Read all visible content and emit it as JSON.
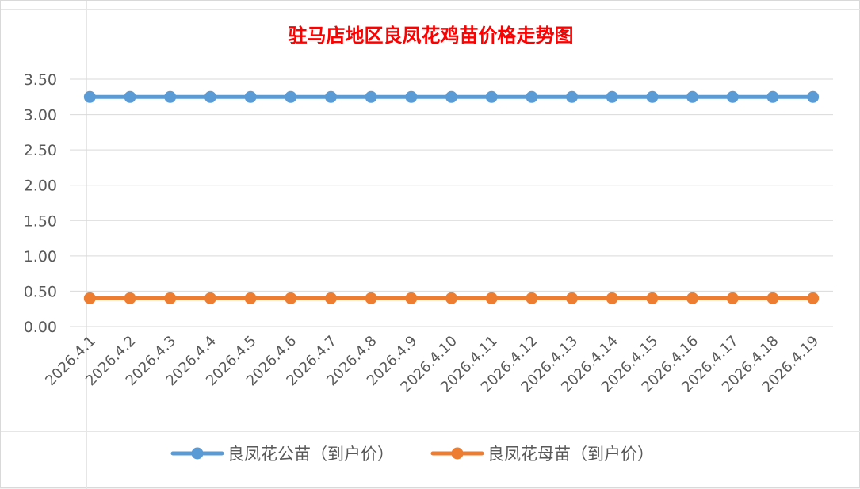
{
  "chart_data": {
    "type": "line",
    "title": "驻马店地区良凤花鸡苗价格走势图",
    "xlabel": "",
    "ylabel": "",
    "categories": [
      "2026.4.1",
      "2026.4.2",
      "2026.4.3",
      "2026.4.4",
      "2026.4.5",
      "2026.4.6",
      "2026.4.7",
      "2026.4.8",
      "2026.4.9",
      "2026.4.10",
      "2026.4.11",
      "2026.4.12",
      "2026.4.13",
      "2026.4.14",
      "2026.4.15",
      "2026.4.16",
      "2026.4.17",
      "2026.4.18",
      "2026.4.19"
    ],
    "ylim": [
      0,
      3.5
    ],
    "yticks": [
      "0.00",
      "0.50",
      "1.00",
      "1.50",
      "2.00",
      "2.50",
      "3.00",
      "3.50"
    ],
    "grid": true,
    "legend_position": "bottom",
    "series": [
      {
        "name": "良凤花公苗（到户价）",
        "color": "#5b9bd5",
        "values": [
          3.25,
          3.25,
          3.25,
          3.25,
          3.25,
          3.25,
          3.25,
          3.25,
          3.25,
          3.25,
          3.25,
          3.25,
          3.25,
          3.25,
          3.25,
          3.25,
          3.25,
          3.25,
          3.25
        ]
      },
      {
        "name": "良凤花母苗（到户价）",
        "color": "#ed7d31",
        "values": [
          0.4,
          0.4,
          0.4,
          0.4,
          0.4,
          0.4,
          0.4,
          0.4,
          0.4,
          0.4,
          0.4,
          0.4,
          0.4,
          0.4,
          0.4,
          0.4,
          0.4,
          0.4,
          0.4
        ]
      }
    ],
    "title_color": "#ff0000",
    "gridline_color": "#d9d9d9",
    "axis_text_color": "#595959"
  }
}
